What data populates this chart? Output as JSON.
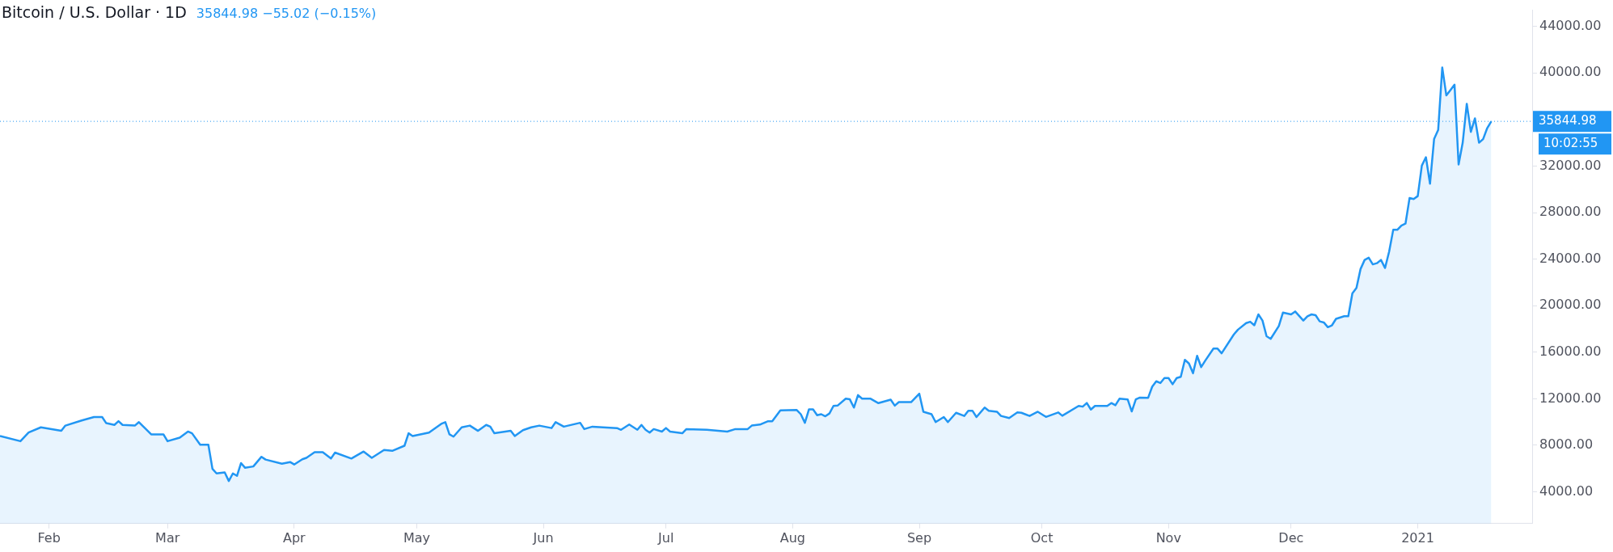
{
  "chart_data": {
    "type": "area",
    "title": "Bitcoin / U.S. Dollar · 1D",
    "subtitle": "35844.98 −55.02 (−0.15%)",
    "x": [
      "2020-01-20",
      "2020-01-25",
      "2020-01-27",
      "2020-01-30",
      "2020-02-04",
      "2020-02-05",
      "2020-02-09",
      "2020-02-12",
      "2020-02-14",
      "2020-02-15",
      "2020-02-17",
      "2020-02-18",
      "2020-02-19",
      "2020-02-22",
      "2020-02-23",
      "2020-02-26",
      "2020-02-29",
      "2020-03-01",
      "2020-03-04",
      "2020-03-06",
      "2020-03-07",
      "2020-03-09",
      "2020-03-11",
      "2020-03-12",
      "2020-03-13",
      "2020-03-15",
      "2020-03-16",
      "2020-03-17",
      "2020-03-18",
      "2020-03-19",
      "2020-03-20",
      "2020-03-22",
      "2020-03-24",
      "2020-03-25",
      "2020-03-29",
      "2020-03-31",
      "2020-04-01",
      "2020-04-03",
      "2020-04-04",
      "2020-04-06",
      "2020-04-08",
      "2020-04-10",
      "2020-04-11",
      "2020-04-15",
      "2020-04-18",
      "2020-04-20",
      "2020-04-23",
      "2020-04-25",
      "2020-04-28",
      "2020-04-29",
      "2020-04-30",
      "2020-05-04",
      "2020-05-07",
      "2020-05-08",
      "2020-05-09",
      "2020-05-10",
      "2020-05-12",
      "2020-05-14",
      "2020-05-16",
      "2020-05-18",
      "2020-05-19",
      "2020-05-20",
      "2020-05-24",
      "2020-05-25",
      "2020-05-27",
      "2020-05-29",
      "2020-05-31",
      "2020-06-03",
      "2020-06-04",
      "2020-06-06",
      "2020-06-10",
      "2020-06-11",
      "2020-06-13",
      "2020-06-19",
      "2020-06-20",
      "2020-06-22",
      "2020-06-24",
      "2020-06-25",
      "2020-06-26",
      "2020-06-27",
      "2020-06-28",
      "2020-06-30",
      "2020-07-01",
      "2020-07-02",
      "2020-07-05",
      "2020-07-06",
      "2020-07-11",
      "2020-07-16",
      "2020-07-18",
      "2020-07-21",
      "2020-07-22",
      "2020-07-24",
      "2020-07-26",
      "2020-07-27",
      "2020-07-29",
      "2020-08-02",
      "2020-08-03",
      "2020-08-04",
      "2020-08-05",
      "2020-08-06",
      "2020-08-07",
      "2020-08-08",
      "2020-08-09",
      "2020-08-10",
      "2020-08-11",
      "2020-08-12",
      "2020-08-14",
      "2020-08-15",
      "2020-08-16",
      "2020-08-17",
      "2020-08-18",
      "2020-08-20",
      "2020-08-22",
      "2020-08-25",
      "2020-08-26",
      "2020-08-27",
      "2020-08-30",
      "2020-09-01",
      "2020-09-02",
      "2020-09-04",
      "2020-09-05",
      "2020-09-07",
      "2020-09-08",
      "2020-09-10",
      "2020-09-12",
      "2020-09-13",
      "2020-09-14",
      "2020-09-15",
      "2020-09-17",
      "2020-09-18",
      "2020-09-20",
      "2020-09-21",
      "2020-09-23",
      "2020-09-25",
      "2020-09-26",
      "2020-09-28",
      "2020-09-30",
      "2020-10-02",
      "2020-10-05",
      "2020-10-06",
      "2020-10-10",
      "2020-10-11",
      "2020-10-12",
      "2020-10-13",
      "2020-10-14",
      "2020-10-17",
      "2020-10-18",
      "2020-10-19",
      "2020-10-20",
      "2020-10-22",
      "2020-10-23",
      "2020-10-24",
      "2020-10-25",
      "2020-10-27",
      "2020-10-28",
      "2020-10-29",
      "2020-10-30",
      "2020-10-31",
      "2020-11-01",
      "2020-11-02",
      "2020-11-03",
      "2020-11-04",
      "2020-11-05",
      "2020-11-06",
      "2020-11-07",
      "2020-11-08",
      "2020-11-09",
      "2020-11-10",
      "2020-11-12",
      "2020-11-13",
      "2020-11-14",
      "2020-11-17",
      "2020-11-18",
      "2020-11-20",
      "2020-11-21",
      "2020-11-22",
      "2020-11-23",
      "2020-11-24",
      "2020-11-25",
      "2020-11-26",
      "2020-11-28",
      "2020-11-29",
      "2020-12-01",
      "2020-12-02",
      "2020-12-04",
      "2020-12-05",
      "2020-12-06",
      "2020-12-07",
      "2020-12-08",
      "2020-12-09",
      "2020-12-10",
      "2020-12-11",
      "2020-12-12",
      "2020-12-14",
      "2020-12-15",
      "2020-12-16",
      "2020-12-17",
      "2020-12-18",
      "2020-12-19",
      "2020-12-20",
      "2020-12-21",
      "2020-12-22",
      "2020-12-23",
      "2020-12-24",
      "2020-12-25",
      "2020-12-26",
      "2020-12-27",
      "2020-12-28",
      "2020-12-29",
      "2020-12-30",
      "2020-12-31",
      "2021-01-01",
      "2021-01-02",
      "2021-01-03",
      "2021-01-04",
      "2021-01-05",
      "2021-01-06",
      "2021-01-07",
      "2021-01-08",
      "2021-01-09",
      "2021-01-10",
      "2021-01-11",
      "2021-01-12",
      "2021-01-13",
      "2021-01-14",
      "2021-01-15",
      "2021-01-16",
      "2021-01-17",
      "2021-01-18",
      "2021-01-19"
    ],
    "series": [
      {
        "color": "#2196f3",
        "values": [
          8800,
          8350,
          9100,
          9540,
          9240,
          9690,
          10130,
          10430,
          10430,
          9900,
          9750,
          10070,
          9750,
          9690,
          9990,
          8940,
          8940,
          8350,
          8650,
          9180,
          9030,
          8050,
          8050,
          5970,
          5580,
          5670,
          4930,
          5580,
          5370,
          6470,
          6060,
          6180,
          7010,
          6770,
          6410,
          6560,
          6350,
          6800,
          6920,
          7400,
          7400,
          6860,
          7370,
          6860,
          7460,
          6920,
          7600,
          7520,
          7960,
          9030,
          8790,
          9090,
          9840,
          9990,
          8940,
          8740,
          9540,
          9690,
          9240,
          9750,
          9600,
          9030,
          9240,
          8790,
          9300,
          9540,
          9690,
          9480,
          9990,
          9600,
          9930,
          9390,
          9600,
          9480,
          9330,
          9780,
          9330,
          9750,
          9330,
          9090,
          9390,
          9180,
          9480,
          9180,
          9030,
          9390,
          9330,
          9180,
          9390,
          9390,
          9690,
          9780,
          10070,
          10070,
          11000,
          11030,
          10670,
          9930,
          11090,
          11090,
          10580,
          10670,
          10490,
          10730,
          11380,
          11410,
          12010,
          11950,
          11240,
          12310,
          12010,
          12010,
          11620,
          11920,
          11410,
          11710,
          11710,
          12430,
          10880,
          10670,
          9990,
          10430,
          9990,
          10790,
          10520,
          10970,
          10970,
          10430,
          11240,
          10970,
          10880,
          10520,
          10340,
          10820,
          10790,
          10520,
          10880,
          10440,
          10820,
          10540,
          11380,
          11320,
          11630,
          11070,
          11380,
          11380,
          11630,
          11440,
          12000,
          11940,
          10910,
          11940,
          12100,
          12070,
          13030,
          13500,
          13350,
          13780,
          13780,
          13250,
          13780,
          13880,
          15340,
          15030,
          14190,
          15690,
          14720,
          15280,
          16310,
          16310,
          15910,
          17530,
          17940,
          18500,
          18620,
          18310,
          19250,
          18720,
          17370,
          17150,
          18250,
          19400,
          19250,
          19500,
          18720,
          19090,
          19250,
          19180,
          18650,
          18560,
          18150,
          18310,
          18870,
          19090,
          19090,
          21060,
          21520,
          23150,
          23930,
          24120,
          23550,
          23650,
          23930,
          23240,
          24650,
          26520,
          26520,
          26890,
          27050,
          29260,
          29170,
          29420,
          32040,
          32760,
          30480,
          34320,
          35100,
          40470,
          38070,
          38530,
          39000,
          32140,
          34010,
          37350,
          34940,
          36100,
          34010,
          34320,
          35260,
          35844.98
        ]
      }
    ],
    "xlim": [
      "2020-01-20",
      "2021-01-29"
    ],
    "xticks": [
      {
        "value": "2020-02",
        "label": "Feb"
      },
      {
        "value": "2020-03",
        "label": "Mar"
      },
      {
        "value": "2020-04",
        "label": "Apr"
      },
      {
        "value": "2020-05",
        "label": "May"
      },
      {
        "value": "2020-06",
        "label": "Jun"
      },
      {
        "value": "2020-07",
        "label": "Jul"
      },
      {
        "value": "2020-08",
        "label": "Aug"
      },
      {
        "value": "2020-09",
        "label": "Sep"
      },
      {
        "value": "2020-10",
        "label": "Oct"
      },
      {
        "value": "2020-11",
        "label": "Nov"
      },
      {
        "value": "2020-12",
        "label": "Dec"
      },
      {
        "value": "2021-01",
        "label": "2021"
      }
    ],
    "ylim": [
      1270,
      45400
    ],
    "yticks": [
      {
        "value": 4000,
        "label": "4000.00"
      },
      {
        "value": 8000,
        "label": "8000.00"
      },
      {
        "value": 12000,
        "label": "12000.00"
      },
      {
        "value": 16000,
        "label": "16000.00"
      },
      {
        "value": 20000,
        "label": "20000.00"
      },
      {
        "value": 24000,
        "label": "24000.00"
      },
      {
        "value": 28000,
        "label": "28000.00"
      },
      {
        "value": 32000,
        "label": "32000.00"
      },
      {
        "value": 40000,
        "label": "40000.00"
      },
      {
        "value": 44000,
        "label": "44000.00"
      }
    ],
    "ref_lines": [
      {
        "axis": "y",
        "value": 35844.98,
        "label": "35844.98",
        "color": "#2196f3",
        "line_style": "dotted"
      }
    ],
    "annotations": [
      "10:02:55"
    ],
    "marker": "none",
    "line_style": "solid"
  }
}
